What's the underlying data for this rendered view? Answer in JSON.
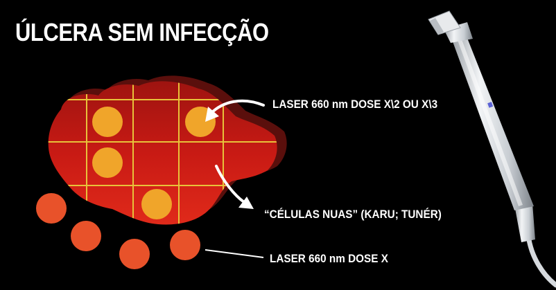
{
  "title": "ÚLCERA SEM INFECÇÃO",
  "labels": {
    "laser_top": "LASER 660 nm DOSE  X\\2 OU X\\3",
    "cells": "“CÉLULAS NUAS” (KARU; TUNÉR)",
    "laser_bottom": "LASER 660 nm DOSE  X"
  },
  "colors": {
    "background": "#000000",
    "ulcer": "#c81812",
    "ulcer_shadow": "#5a0f0c",
    "grid": "#e8c23a",
    "inner_dot": "#f0a52a",
    "outer_dot": "#e8522a",
    "text": "#ffffff"
  },
  "icons": {
    "probe": "laser-probe-handpiece-icon"
  }
}
